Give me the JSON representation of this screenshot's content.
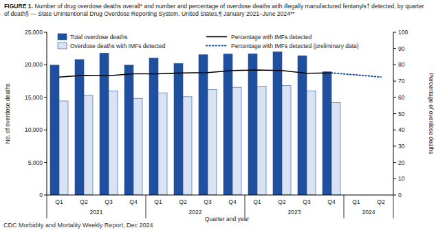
{
  "chart_data": {
    "type": "bar",
    "title": "FIGURE 1. Number of drug overdose deaths overall* and number and percentage of overdose deaths with illegally manufactured fentanyls† detected, by quarter of death§ — State Unintentional Drug Overdose Reporting System, United States,¶ January 2021–June 2024**",
    "x_label": "Quarter and year",
    "y_label": "No. of overdose deaths",
    "y2_label": "Percentage of overdose deaths",
    "footer": "CDC Morbidity and Mortality Weekly Report, Dec 2024",
    "categories": [
      "Q1",
      "Q2",
      "Q3",
      "Q4",
      "Q1",
      "Q2",
      "Q3",
      "Q4",
      "Q1",
      "Q2",
      "Q3",
      "Q4",
      "Q1",
      "Q2"
    ],
    "year_groups": [
      {
        "label": "2021",
        "count": 4
      },
      {
        "label": "2022",
        "count": 4
      },
      {
        "label": "2023",
        "count": 4
      },
      {
        "label": "2024",
        "count": 2
      }
    ],
    "series": [
      {
        "name": "Total overdose deaths",
        "type": "bar",
        "color": "#1f4f9f",
        "values": [
          19950,
          20800,
          21800,
          19950,
          21050,
          20200,
          21550,
          21650,
          21700,
          22000,
          21400,
          18950,
          null,
          null
        ]
      },
      {
        "name": "Overdose deaths with IMFs detected",
        "type": "bar",
        "color": "#d9e3f2",
        "values": [
          14450,
          15300,
          16000,
          14850,
          15700,
          15100,
          16200,
          16550,
          16700,
          16800,
          16000,
          14200,
          null,
          null
        ]
      },
      {
        "name": "Percentage with IMFs detected",
        "type": "line",
        "axis": "y2",
        "color": "#000000",
        "line_style": "solid",
        "values": [
          72.5,
          73.5,
          73.3,
          74.5,
          74.5,
          75,
          75.2,
          76.5,
          76.8,
          76.5,
          74.8,
          75,
          null,
          null
        ]
      },
      {
        "name": "Percentage with IMFs detected (preliminary data)",
        "type": "line",
        "axis": "y2",
        "color": "#1f4f9f",
        "line_style": "dotted",
        "values": [
          null,
          null,
          null,
          null,
          null,
          null,
          null,
          null,
          null,
          null,
          null,
          75,
          73.8,
          72.5
        ]
      }
    ],
    "ylim": [
      0,
      25000
    ],
    "yticks": [
      0,
      {
        "value": 5000,
        "label": "5,000"
      },
      {
        "value": 10000,
        "label": "10,000"
      },
      {
        "value": 15000,
        "label": "15,000"
      },
      {
        "value": 20000,
        "label": "20,000"
      },
      {
        "value": 25000,
        "label": "25,000"
      }
    ],
    "y2lim": [
      0,
      100
    ],
    "y2ticks": [
      0,
      10,
      20,
      30,
      40,
      50,
      60,
      70,
      80,
      90,
      100
    ],
    "grid": false,
    "legend": "top"
  }
}
